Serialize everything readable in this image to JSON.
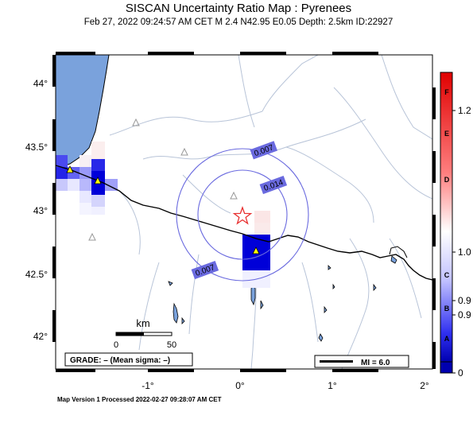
{
  "header": {
    "title": "SISCAN Uncertainty Ratio Map : Pyrenees",
    "subtitle": "Feb 27, 2022 09:24:57 AM CET   M 2.4   N42.95 E0.05   Depth: 2.5km   ID:22927"
  },
  "map": {
    "lat_ticks": [
      "44°",
      "43.5°",
      "43°",
      "42.5°",
      "42°"
    ],
    "lon_ticks": [
      "-1°",
      "0°",
      "1°",
      "2°"
    ],
    "contour_labels": [
      "0.007",
      "0.014",
      "0.007"
    ],
    "scalebar": {
      "unit": "km",
      "min_label": "0",
      "max_label": "50"
    },
    "grade_text": "GRADE: – (Mean sigma: –)",
    "mmi_legend": "MI = 6.0",
    "epicenter_icon": "star-icon",
    "station_icon": "triangle-icon",
    "colors": {
      "sea": "#7aa2dc",
      "land": "#ffffff",
      "border": "#000000",
      "rivers": "#b8c4d8",
      "contour": "#6a6adf",
      "epicenter": "#e83030",
      "station_active": "#ffff00"
    }
  },
  "colorbar": {
    "letters": [
      "F",
      "E",
      "D",
      "C",
      "B",
      "A"
    ],
    "values": [
      "1.2",
      "1.0",
      "0.9",
      "0.9",
      "0"
    ],
    "top_color": "#e00000",
    "bottom_color": "#0000b0"
  },
  "footer": {
    "text": "Map Version 1 Processed 2022-02-27 09:28:07 AM CET"
  }
}
